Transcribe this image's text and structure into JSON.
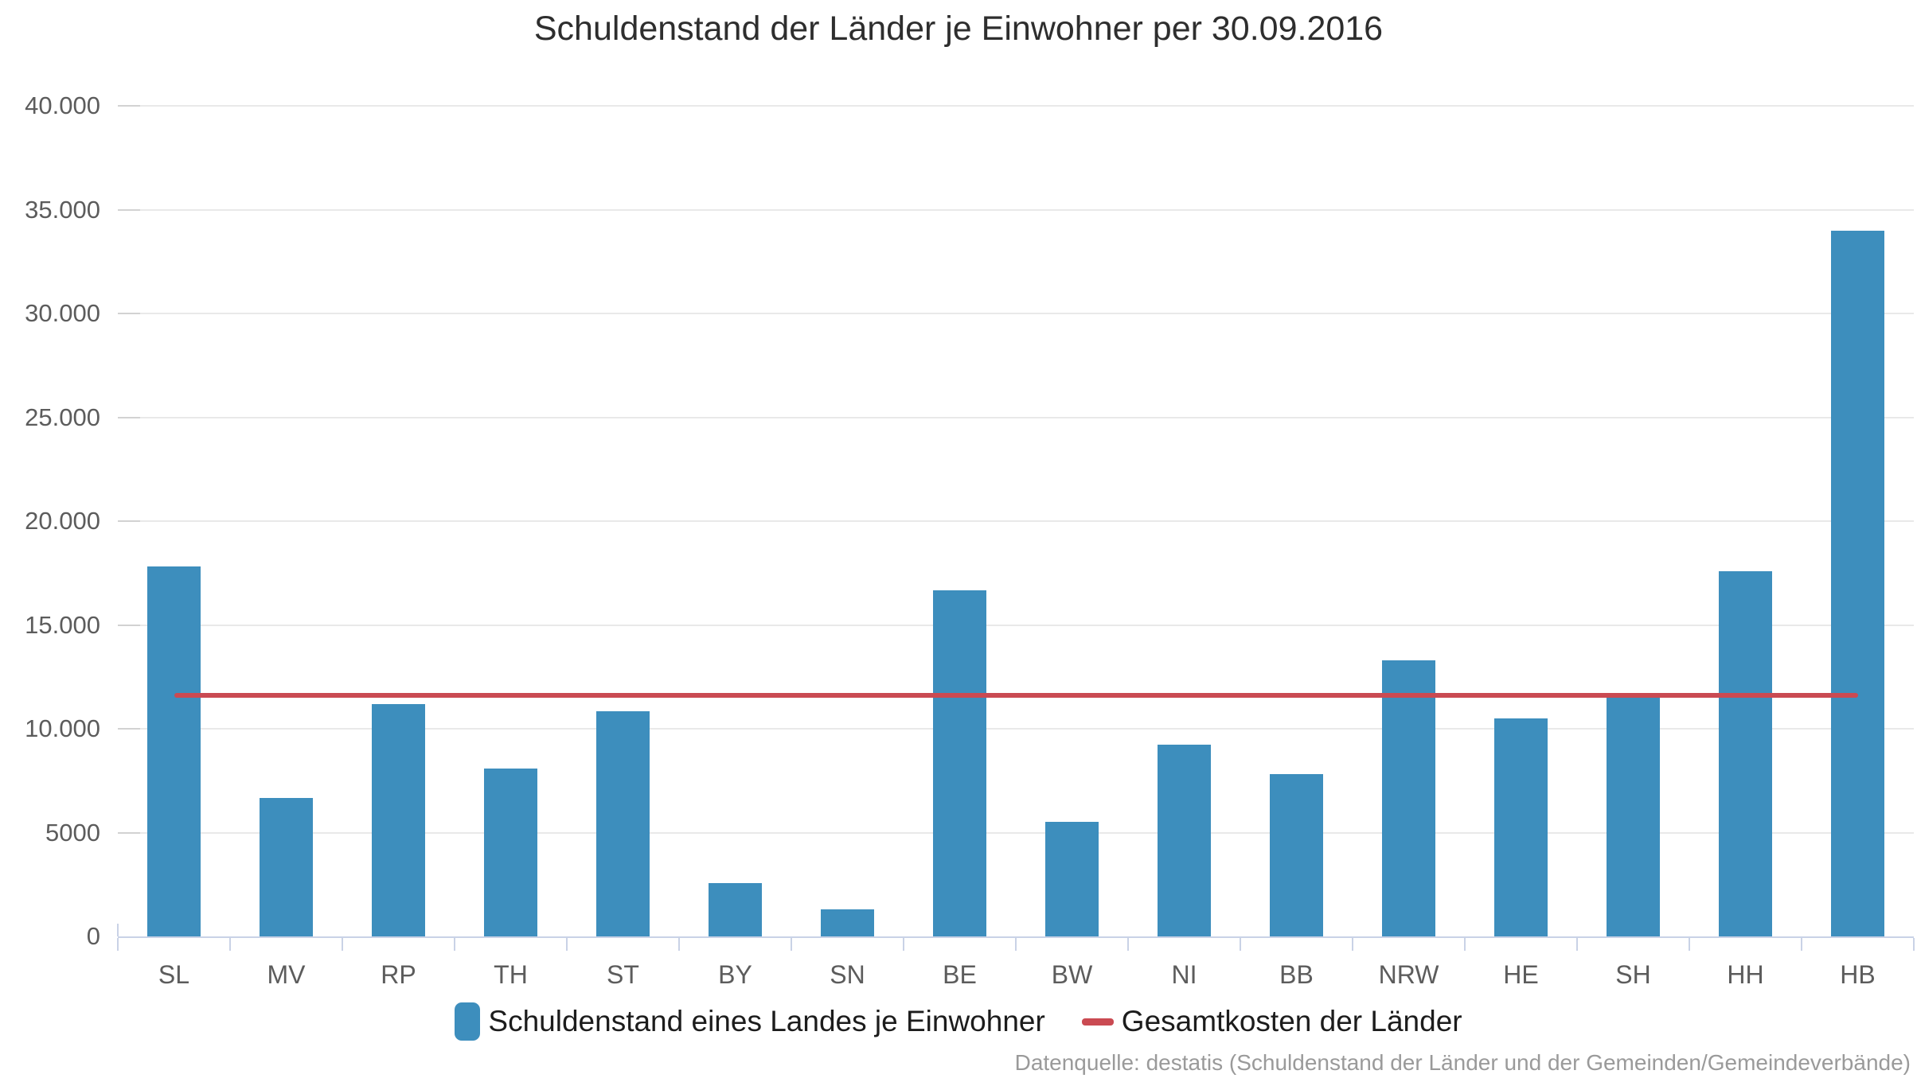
{
  "header": {
    "title": "Schuldenstand der Länder je Einwohner per 30.09.2016"
  },
  "source_note": "Datenquelle: destatis (Schuldenstand der Länder und der Gemeinden/Gemeindeverbände)",
  "colors": {
    "bar": "#3d8ebd",
    "reference_line": "#ca4a52",
    "gridline": "#e9e9e9",
    "grid_tick": "#d2d2d2",
    "axis": "#c9d2e6",
    "axis_label": "#5c5c5c",
    "title_text": "#2e2e2e",
    "legend_text": "#1c1c1c",
    "source_text": "#9a9a9a",
    "background": "#ffffff"
  },
  "chart_data": {
    "type": "bar",
    "title": "Schuldenstand der Länder je Einwohner per 30.09.2016",
    "xlabel": "",
    "ylabel": "",
    "ylim": [
      0,
      40000
    ],
    "grid": "horizontal",
    "legend_position": "bottom",
    "categories": [
      "SL",
      "MV",
      "RP",
      "TH",
      "ST",
      "BY",
      "SN",
      "BE",
      "BW",
      "NI",
      "BB",
      "NRW",
      "HE",
      "SH",
      "HH",
      "HB"
    ],
    "series": [
      {
        "name": "Schuldenstand eines Landes je Einwohner",
        "type": "bar",
        "color": "#3d8ebd",
        "values": [
          17800,
          6650,
          11200,
          8100,
          10850,
          2550,
          1300,
          16650,
          5500,
          9250,
          7800,
          13300,
          10500,
          11500,
          17600,
          34000
        ]
      },
      {
        "name": "Gesamtkosten der Länder",
        "type": "line",
        "color": "#ca4a52",
        "value": 11600,
        "values": [
          11600,
          11600,
          11600,
          11600,
          11600,
          11600,
          11600,
          11600,
          11600,
          11600,
          11600,
          11600,
          11600,
          11600,
          11600,
          11600
        ]
      }
    ],
    "y_ticks": [
      {
        "value": 0,
        "label": "0"
      },
      {
        "value": 5000,
        "label": "5000"
      },
      {
        "value": 10000,
        "label": "10.000"
      },
      {
        "value": 15000,
        "label": "15.000"
      },
      {
        "value": 20000,
        "label": "20.000"
      },
      {
        "value": 25000,
        "label": "25.000"
      },
      {
        "value": 30000,
        "label": "30.000"
      },
      {
        "value": 35000,
        "label": "35.000"
      },
      {
        "value": 40000,
        "label": "40.000"
      }
    ]
  }
}
